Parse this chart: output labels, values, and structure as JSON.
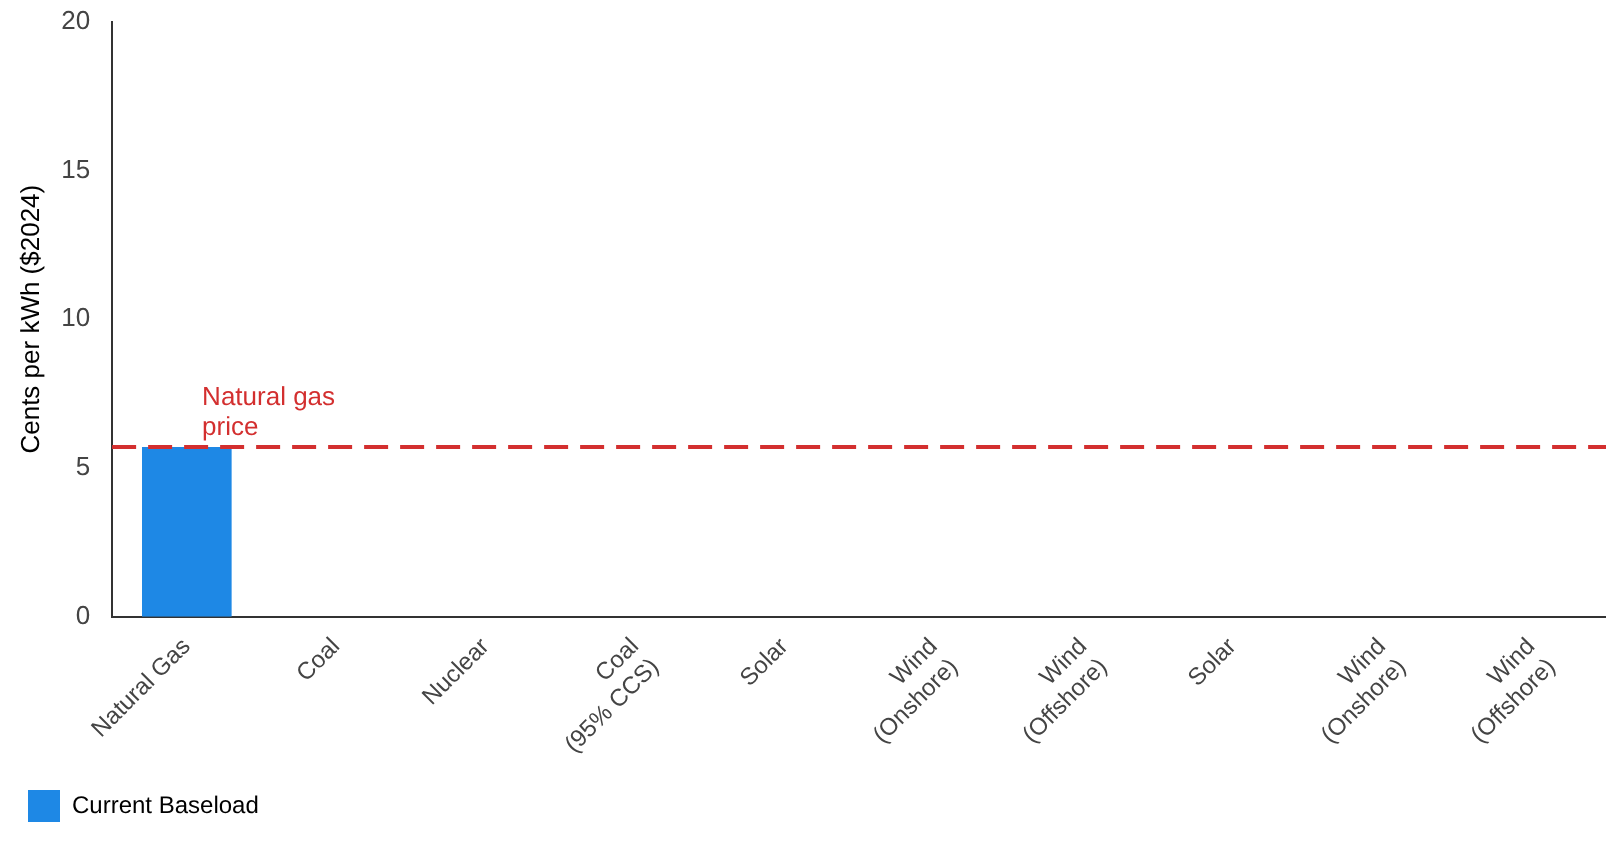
{
  "chart_data": {
    "type": "bar",
    "ylabel": "Cents per kWh ($2024)",
    "categories": [
      "Natural Gas",
      "Coal",
      "Nuclear",
      "Coal\n(95% CCS)",
      "Solar",
      "Wind\n(Onshore)",
      "Wind\n(Offshore)",
      "Solar",
      "Wind\n(Onshore)",
      "Wind\n(Offshore)"
    ],
    "series": [
      {
        "name": "Current Baseload",
        "color": "#1e88e5",
        "values": [
          5.7,
          0,
          0,
          0,
          0,
          0,
          0,
          0,
          0,
          0
        ]
      }
    ],
    "ylim": [
      0,
      20
    ],
    "yticks": [
      0,
      5,
      10,
      15,
      20
    ],
    "grid": false,
    "legend": "bottom left",
    "ref_lines": [
      {
        "axis": "y",
        "value": 5.7,
        "label": "Natural gas price",
        "color": "#d32f2f",
        "line_style": "dashed"
      }
    ]
  }
}
